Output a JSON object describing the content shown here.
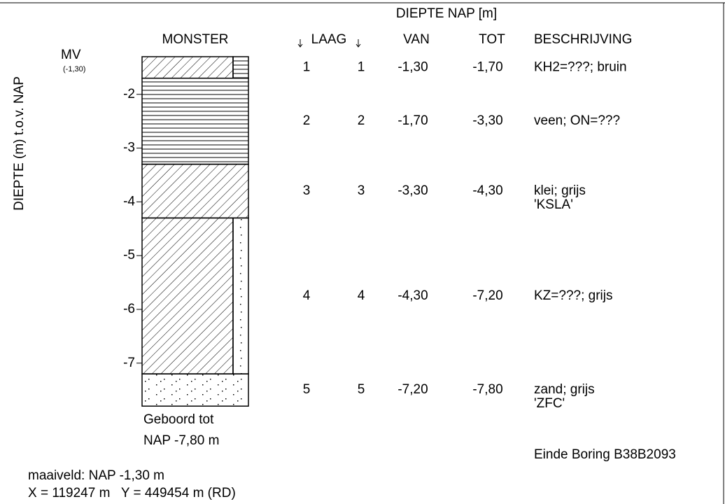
{
  "axis": {
    "label": "DIEPTE (m) t.o.v. NAP",
    "ticks": [
      -2,
      -3,
      -4,
      -5,
      -6,
      -7
    ]
  },
  "header": {
    "group": "DIEPTE NAP [m]",
    "monster": "MONSTER",
    "laag": "LAAG",
    "van": "VAN",
    "tot": "TOT",
    "beschrijving": "BESCHRIJVING"
  },
  "surface": {
    "label": "MV",
    "level": "(-1,30)"
  },
  "layers": [
    {
      "laag1": "1",
      "laag2": "1",
      "van": "-1,30",
      "tot": "-1,70",
      "description": [
        "KH2=???; bruin"
      ]
    },
    {
      "laag1": "2",
      "laag2": "2",
      "van": "-1,70",
      "tot": "-3,30",
      "description": [
        "veen; ON=???"
      ]
    },
    {
      "laag1": "3",
      "laag2": "3",
      "van": "-3,30",
      "tot": "-4,30",
      "description": [
        "klei; grijs",
        "'KSLA'"
      ]
    },
    {
      "laag1": "4",
      "laag2": "4",
      "van": "-4,30",
      "tot": "-7,20",
      "description": [
        "KZ=???; grijs"
      ]
    },
    {
      "laag1": "5",
      "laag2": "5",
      "van": "-7,20",
      "tot": "-7,80",
      "description": [
        "zand; grijs",
        "'ZFC'"
      ]
    }
  ],
  "bottom": [
    "Geboord tot",
    "NAP -7,80 m"
  ],
  "end": "Einde Boring B38B2093",
  "footer": [
    "maaiveld: NAP -1,30 m",
    "X = 119247 m   Y = 449454 m (RD)"
  ]
}
